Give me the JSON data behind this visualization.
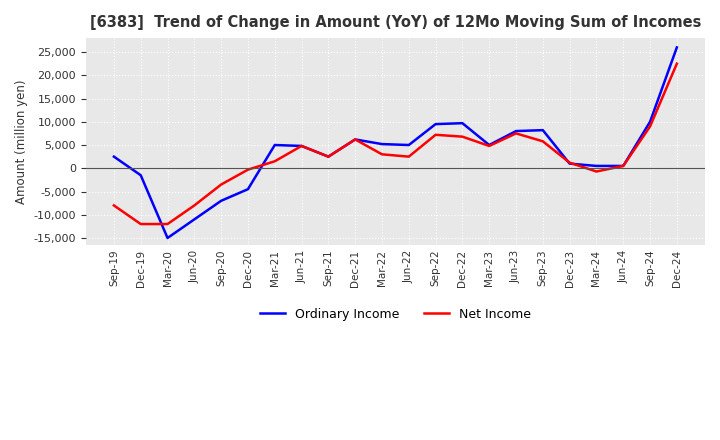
{
  "title": "[6383]  Trend of Change in Amount (YoY) of 12Mo Moving Sum of Incomes",
  "ylabel": "Amount (million yen)",
  "ylim": [
    -16500,
    28000
  ],
  "yticks": [
    -15000,
    -10000,
    -5000,
    0,
    5000,
    10000,
    15000,
    20000,
    25000
  ],
  "background_color": "#ffffff",
  "plot_bg_color": "#e8e8e8",
  "grid_color": "#ffffff",
  "ordinary_income_color": "#0000ff",
  "net_income_color": "#ff0000",
  "x_labels": [
    "Sep-19",
    "Dec-19",
    "Mar-20",
    "Jun-20",
    "Sep-20",
    "Dec-20",
    "Mar-21",
    "Jun-21",
    "Sep-21",
    "Dec-21",
    "Mar-22",
    "Jun-22",
    "Sep-22",
    "Dec-22",
    "Mar-23",
    "Jun-23",
    "Sep-23",
    "Dec-23",
    "Mar-24",
    "Jun-24",
    "Sep-24",
    "Dec-24"
  ],
  "ordinary_income": [
    2500,
    -1500,
    -15000,
    -11000,
    -7000,
    -4500,
    5000,
    4800,
    2500,
    6200,
    5200,
    5000,
    9500,
    9700,
    5000,
    8000,
    8200,
    1000,
    500,
    500,
    10000,
    26000
  ],
  "net_income": [
    -8000,
    -12000,
    -12000,
    -8000,
    -3500,
    -300,
    1500,
    4800,
    2500,
    6200,
    3000,
    2500,
    7200,
    6800,
    4800,
    7500,
    5800,
    1200,
    -700,
    500,
    9000,
    22500
  ]
}
